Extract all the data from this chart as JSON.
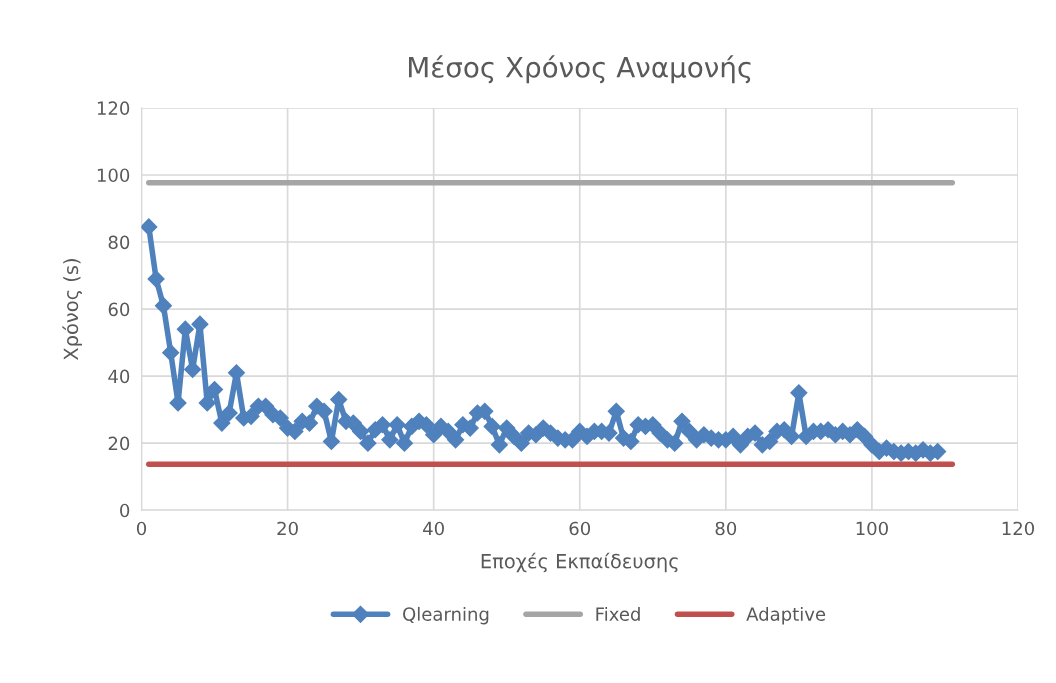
{
  "chart_data": {
    "type": "line",
    "title": "Μέσος Χρόνος Αναμονής",
    "xlabel": "Εποχές Εκπαίδευσης",
    "ylabel": "Χρόνος (s)",
    "xlim": [
      0,
      120
    ],
    "xticks": [
      0,
      20,
      40,
      60,
      80,
      100,
      120
    ],
    "ylim": [
      0,
      120
    ],
    "yticks": [
      0,
      20,
      40,
      60,
      80,
      100,
      120
    ],
    "grid": true,
    "legend": "bottom",
    "series": [
      {
        "name": "Qlearning",
        "color": "#4f81bd",
        "marker": "diamond",
        "x": [
          1,
          2,
          3,
          4,
          5,
          6,
          7,
          8,
          9,
          10,
          11,
          12,
          13,
          14,
          15,
          16,
          17,
          18,
          19,
          20,
          21,
          22,
          23,
          24,
          25,
          26,
          27,
          28,
          29,
          30,
          31,
          32,
          33,
          34,
          35,
          36,
          37,
          38,
          39,
          40,
          41,
          42,
          43,
          44,
          45,
          46,
          47,
          48,
          49,
          50,
          51,
          52,
          53,
          54,
          55,
          56,
          57,
          58,
          59,
          60,
          61,
          62,
          63,
          64,
          65,
          66,
          67,
          68,
          69,
          70,
          71,
          72,
          73,
          74,
          75,
          76,
          77,
          78,
          79,
          80,
          81,
          82,
          83,
          84,
          85,
          86,
          87,
          88,
          89,
          90,
          91,
          92,
          93,
          94,
          95,
          96,
          97,
          98,
          99,
          100,
          101,
          102,
          103,
          104,
          105,
          106,
          107,
          108,
          109
        ],
        "values": [
          84.5,
          69,
          61,
          47,
          32,
          54,
          42,
          55.5,
          32,
          36,
          26,
          29,
          41,
          27.5,
          28,
          31,
          31,
          28.5,
          27.5,
          24.5,
          23.5,
          26.5,
          26,
          31,
          29.5,
          20.5,
          33,
          26.5,
          26,
          23.5,
          20,
          24,
          25.5,
          21,
          25.5,
          20,
          25,
          26.5,
          25.5,
          22.5,
          25,
          23.5,
          21,
          25.5,
          24.5,
          29,
          29.5,
          25,
          19.5,
          24.5,
          22,
          20,
          23,
          22.5,
          24.5,
          23,
          21.5,
          21,
          21,
          23.5,
          22,
          23.5,
          23.5,
          23,
          29.5,
          21.5,
          20.5,
          25.5,
          25,
          25.5,
          23,
          21,
          20,
          26.5,
          23.5,
          21,
          22.5,
          21.5,
          21,
          21,
          22,
          19.5,
          22,
          23,
          19.5,
          20.5,
          23.5,
          24,
          22,
          35,
          22,
          23.5,
          23.5,
          24,
          22.5,
          23.5,
          22.5,
          24,
          22,
          19.5,
          17.5,
          18.5,
          17.5,
          17,
          17.5,
          17,
          18,
          17,
          17.5
        ]
      },
      {
        "name": "Fixed",
        "color": "#a5a5a5",
        "marker": "none",
        "x": [
          1,
          111
        ],
        "values": [
          97.7,
          97.7
        ]
      },
      {
        "name": "Adaptive",
        "color": "#c0504d",
        "marker": "none",
        "x": [
          1,
          111
        ],
        "values": [
          13.7,
          13.7
        ]
      }
    ]
  }
}
